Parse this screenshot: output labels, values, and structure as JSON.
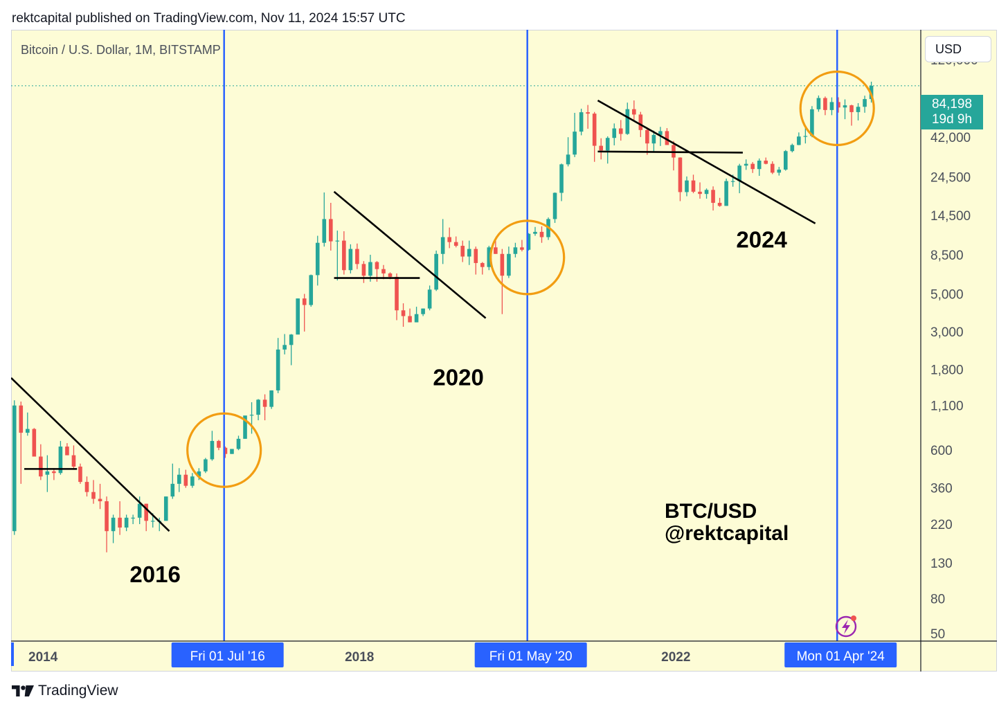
{
  "header": {
    "credit": "rektcapital published on TradingView.com, Nov 11, 2024 15:57 UTC",
    "symbol": "Bitcoin / U.S. Dollar, 1M, BITSTAMP",
    "currency": "USD"
  },
  "price_tag": {
    "price": "84,198",
    "countdown": "19d 9h"
  },
  "footer": {
    "brand": "TradingView"
  },
  "colors": {
    "background": "#fdfcd6",
    "up": "#26a69a",
    "down": "#ef5350",
    "halving_line": "#2962ff",
    "circle": "#f29d12",
    "trendline": "#000000",
    "price_tag": "#26a69a"
  },
  "chart_data": {
    "type": "candlestick",
    "title": "Bitcoin / U.S. Dollar, 1M, BITSTAMP",
    "y_scale": "log",
    "ylim": [
      45,
      180000
    ],
    "xlim": [
      "2013-11",
      "2025-05"
    ],
    "y_ticks": [
      {
        "value": 120000,
        "label": "120,000"
      },
      {
        "value": 42000,
        "label": "42,000"
      },
      {
        "value": 24500,
        "label": "24,500"
      },
      {
        "value": 14500,
        "label": "14,500"
      },
      {
        "value": 8500,
        "label": "8,500"
      },
      {
        "value": 5000,
        "label": "5,000"
      },
      {
        "value": 3000,
        "label": "3,000"
      },
      {
        "value": 1800,
        "label": "1,800"
      },
      {
        "value": 1100,
        "label": "1,100"
      },
      {
        "value": 600,
        "label": "600"
      },
      {
        "value": 360,
        "label": "360"
      },
      {
        "value": 220,
        "label": "220"
      },
      {
        "value": 130,
        "label": "130"
      },
      {
        "value": 80,
        "label": "80"
      },
      {
        "value": 50,
        "label": "50"
      }
    ],
    "x_ticks": [
      {
        "date": "2014-01",
        "label": "2014"
      },
      {
        "date": "2018-01",
        "label": "2018"
      },
      {
        "date": "2022-01",
        "label": "2022"
      }
    ],
    "current_price": 84198,
    "halvings": [
      {
        "date": "2016-07",
        "label": "Fri 01 Jul '16"
      },
      {
        "date": "2020-05",
        "label": "Fri 01 May '20"
      },
      {
        "date": "2024-04",
        "label": "Mon 01 Apr '24"
      }
    ],
    "cycle_labels": [
      {
        "text": "2016",
        "date": "2015-05",
        "price": 100
      },
      {
        "text": "2020",
        "date": "2019-03",
        "price": 1450
      },
      {
        "text": "2024",
        "date": "2023-01",
        "price": 9400
      }
    ],
    "watermark": [
      "BTC/USD",
      "@rektcapital"
    ],
    "circles": [
      {
        "date": "2016-07",
        "price": 600
      },
      {
        "date": "2020-05",
        "price": 8200
      },
      {
        "date": "2024-04",
        "price": 62000
      }
    ],
    "trendlines": [
      {
        "from": {
          "date": "2013-11",
          "price": 1600
        },
        "to": {
          "date": "2015-11",
          "price": 200
        }
      },
      {
        "from": {
          "date": "2014-01",
          "price": 465
        },
        "to": {
          "date": "2014-09",
          "price": 465
        }
      },
      {
        "from": {
          "date": "2017-12",
          "price": 20000
        },
        "to": {
          "date": "2019-11",
          "price": 3600
        }
      },
      {
        "from": {
          "date": "2017-12",
          "price": 6200
        },
        "to": {
          "date": "2019-01",
          "price": 6200
        }
      },
      {
        "from": {
          "date": "2021-04",
          "price": 69000
        },
        "to": {
          "date": "2024-01",
          "price": 13000
        }
      },
      {
        "from": {
          "date": "2021-04",
          "price": 34500
        },
        "to": {
          "date": "2023-02",
          "price": 34000
        }
      }
    ],
    "candles": {
      "start": "2013-11",
      "interval": "1M",
      "ohlc": [
        [
          200,
          1180,
          190,
          1100
        ],
        [
          1100,
          1160,
          380,
          760
        ],
        [
          760,
          1000,
          730,
          800
        ],
        [
          800,
          810,
          580,
          550
        ],
        [
          550,
          650,
          400,
          420
        ],
        [
          430,
          560,
          340,
          450
        ],
        [
          450,
          470,
          400,
          440
        ],
        [
          440,
          680,
          430,
          630
        ],
        [
          630,
          660,
          560,
          560
        ],
        [
          560,
          640,
          460,
          480
        ],
        [
          480,
          500,
          380,
          390
        ],
        [
          390,
          420,
          320,
          340
        ],
        [
          340,
          400,
          290,
          310
        ],
        [
          310,
          380,
          270,
          300
        ],
        [
          300,
          320,
          150,
          200
        ],
        [
          200,
          250,
          170,
          240
        ],
        [
          240,
          300,
          190,
          210
        ],
        [
          210,
          250,
          200,
          240
        ],
        [
          240,
          250,
          220,
          240
        ],
        [
          240,
          320,
          220,
          290
        ],
        [
          290,
          290,
          200,
          230
        ],
        [
          230,
          255,
          210,
          230
        ],
        [
          230,
          240,
          200,
          230
        ],
        [
          230,
          320,
          230,
          320
        ],
        [
          320,
          500,
          310,
          380
        ],
        [
          380,
          470,
          340,
          430
        ],
        [
          430,
          460,
          360,
          370
        ],
        [
          370,
          440,
          360,
          420
        ],
        [
          420,
          470,
          400,
          450
        ],
        [
          450,
          540,
          440,
          530
        ],
        [
          530,
          780,
          520,
          680
        ],
        [
          680,
          690,
          600,
          620
        ],
        [
          620,
          630,
          540,
          570
        ],
        [
          570,
          610,
          570,
          610
        ],
        [
          610,
          730,
          600,
          700
        ],
        [
          700,
          750,
          700,
          960
        ],
        [
          960,
          1150,
          750,
          970
        ],
        [
          970,
          1200,
          900,
          1190
        ],
        [
          1190,
          1280,
          900,
          1080
        ],
        [
          1080,
          1350,
          1050,
          1350
        ],
        [
          1350,
          2750,
          1300,
          2350
        ],
        [
          2350,
          2900,
          2200,
          2500
        ],
        [
          2500,
          2900,
          1900,
          2880
        ],
        [
          2880,
          4700,
          2900,
          4700
        ],
        [
          4700,
          5000,
          3000,
          4300
        ],
        [
          4300,
          6500,
          4200,
          6450
        ],
        [
          6450,
          11000,
          5600,
          10000
        ],
        [
          10000,
          19800,
          9500,
          13800
        ],
        [
          13800,
          17200,
          9000,
          10200
        ],
        [
          10200,
          11800,
          6000,
          10300
        ],
        [
          10300,
          11700,
          6500,
          6900
        ],
        [
          6900,
          9800,
          6600,
          9200
        ],
        [
          9200,
          9900,
          7000,
          7500
        ],
        [
          7500,
          7800,
          5800,
          6400
        ],
        [
          6400,
          8500,
          5900,
          7700
        ],
        [
          7700,
          7800,
          5900,
          7000
        ],
        [
          7000,
          7400,
          6100,
          6600
        ],
        [
          6600,
          6700,
          6100,
          6300
        ],
        [
          6300,
          6600,
          3500,
          4000
        ],
        [
          4000,
          4400,
          3200,
          3700
        ],
        [
          3700,
          4100,
          3400,
          3400
        ],
        [
          3400,
          4200,
          3400,
          3800
        ],
        [
          3800,
          4100,
          3700,
          4100
        ],
        [
          4100,
          5600,
          4000,
          5300
        ],
        [
          5300,
          9000,
          5200,
          8600
        ],
        [
          8600,
          13800,
          7500,
          10800
        ],
        [
          10800,
          12300,
          9300,
          10100
        ],
        [
          10100,
          10900,
          9400,
          9600
        ],
        [
          9600,
          10300,
          7700,
          8300
        ],
        [
          8300,
          10300,
          7400,
          9200
        ],
        [
          9200,
          9500,
          6500,
          7600
        ],
        [
          7600,
          7700,
          6500,
          7200
        ],
        [
          7200,
          9600,
          6900,
          9400
        ],
        [
          9400,
          10500,
          8600,
          8600
        ],
        [
          8600,
          9200,
          3800,
          6400
        ],
        [
          6400,
          9500,
          6200,
          8600
        ],
        [
          8600,
          10000,
          8200,
          9400
        ],
        [
          9400,
          10400,
          8900,
          9100
        ],
        [
          9100,
          11400,
          9000,
          11300
        ],
        [
          11300,
          12400,
          11000,
          11600
        ],
        [
          11600,
          12500,
          10000,
          10800
        ],
        [
          10800,
          14100,
          10400,
          13800
        ],
        [
          13800,
          19800,
          13100,
          19700
        ],
        [
          19700,
          29300,
          17600,
          29000
        ],
        [
          29000,
          41900,
          28200,
          33100
        ],
        [
          33100,
          58300,
          32000,
          45200
        ],
        [
          45200,
          61700,
          43000,
          58800
        ],
        [
          58800,
          64900,
          47000,
          57700
        ],
        [
          57700,
          59000,
          30000,
          37300
        ],
        [
          37300,
          41300,
          31000,
          35000
        ],
        [
          35000,
          42400,
          29300,
          41500
        ],
        [
          41500,
          50500,
          37500,
          47200
        ],
        [
          47200,
          52900,
          40000,
          43800
        ],
        [
          43800,
          67000,
          43300,
          61300
        ],
        [
          61300,
          69000,
          53000,
          57000
        ],
        [
          57000,
          59100,
          42000,
          46200
        ],
        [
          46200,
          47900,
          33000,
          38500
        ],
        [
          38500,
          45800,
          34400,
          43200
        ],
        [
          43200,
          48200,
          37200,
          45500
        ],
        [
          45500,
          47400,
          37700,
          37700
        ],
        [
          37700,
          39800,
          26700,
          31800
        ],
        [
          31800,
          31900,
          17600,
          19900
        ],
        [
          19900,
          24600,
          18800,
          23300
        ],
        [
          23300,
          25200,
          19600,
          20000
        ],
        [
          20000,
          22700,
          18200,
          19400
        ],
        [
          19400,
          20900,
          18200,
          20500
        ],
        [
          20500,
          21500,
          15500,
          17200
        ],
        [
          17200,
          18400,
          16300,
          16500
        ],
        [
          16500,
          23900,
          16500,
          23100
        ],
        [
          23100,
          25200,
          21400,
          23100
        ],
        [
          23100,
          29200,
          19600,
          28500
        ],
        [
          28500,
          31000,
          26900,
          29200
        ],
        [
          29200,
          29900,
          25800,
          27200
        ],
        [
          27200,
          31400,
          24800,
          30500
        ],
        [
          30500,
          31800,
          29000,
          29200
        ],
        [
          29200,
          30200,
          25400,
          25900
        ],
        [
          25900,
          28000,
          24900,
          27000
        ],
        [
          27000,
          35200,
          26600,
          34700
        ],
        [
          34700,
          38400,
          34100,
          37700
        ],
        [
          37700,
          44700,
          37600,
          42300
        ],
        [
          42300,
          48900,
          38500,
          42600
        ],
        [
          42600,
          63900,
          41900,
          61200
        ],
        [
          61200,
          73800,
          59200,
          71300
        ],
        [
          71300,
          72800,
          56500,
          60600
        ],
        [
          60600,
          71900,
          56500,
          67500
        ],
        [
          67500,
          72000,
          58500,
          62700
        ],
        [
          62700,
          70000,
          53500,
          64600
        ],
        [
          64600,
          65100,
          49000,
          58900
        ],
        [
          58900,
          66500,
          52600,
          63300
        ],
        [
          63300,
          73600,
          58400,
          70300
        ],
        [
          70300,
          89000,
          67000,
          84198
        ]
      ]
    }
  }
}
